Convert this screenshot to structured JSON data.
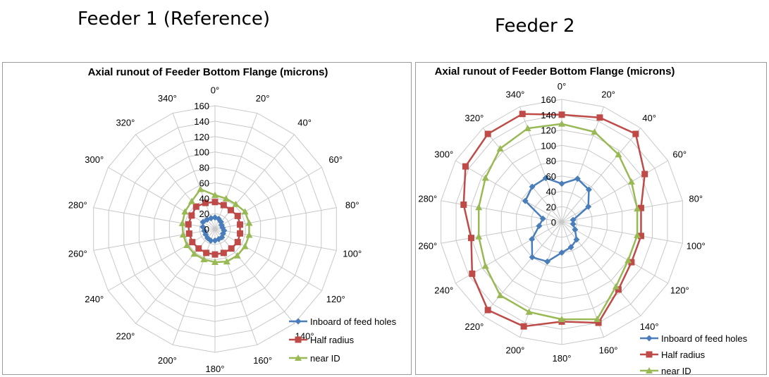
{
  "headings": {
    "left": "Feeder 1 (Reference)",
    "right": "Feeder 2"
  },
  "chart_data": [
    {
      "type": "radar",
      "title": "Axial runout of Feeder Bottom Flange (microns)",
      "categories": [
        "0°",
        "20°",
        "40°",
        "60°",
        "80°",
        "100°",
        "120°",
        "140°",
        "160°",
        "180°",
        "200°",
        "220°",
        "240°",
        "260°",
        "280°",
        "300°",
        "320°",
        "340°"
      ],
      "rlim": [
        0,
        160
      ],
      "rticks": [
        "0",
        "20",
        "40",
        "60",
        "80",
        "100",
        "120",
        "140",
        "160"
      ],
      "grid": true,
      "legend": "bottom-right",
      "series": [
        {
          "name": "Inboard of feed holes",
          "color": "#4a7ebb",
          "marker": "diamond",
          "values": [
            15,
            14,
            12,
            10,
            10,
            12,
            12,
            14,
            14,
            15,
            16,
            15,
            14,
            14,
            16,
            18,
            16,
            15
          ]
        },
        {
          "name": "Half radius",
          "color": "#be4b48",
          "marker": "square",
          "values": [
            35,
            33,
            32,
            34,
            33,
            33,
            34,
            33,
            33,
            33,
            33,
            33,
            34,
            34,
            35,
            35,
            38,
            36
          ]
        },
        {
          "name": "near ID",
          "color": "#98b954",
          "marker": "triangle",
          "values": [
            44,
            42,
            42,
            45,
            45,
            45,
            45,
            45,
            45,
            43,
            42,
            42,
            42,
            42,
            43,
            45,
            47,
            55
          ]
        }
      ]
    },
    {
      "type": "radar",
      "title": "Axial runout of Feeder Bottom Flange (microns)",
      "categories": [
        "0°",
        "20°",
        "40°",
        "60°",
        "80°",
        "100°",
        "120°",
        "140°",
        "160°",
        "180°",
        "200°",
        "220°",
        "240°",
        "260°",
        "280°",
        "300°",
        "320°",
        "340°"
      ],
      "rlim": [
        0,
        160
      ],
      "rticks": [
        "0",
        "20",
        "40",
        "60",
        "80",
        "100",
        "120",
        "140",
        "160"
      ],
      "grid": true,
      "legend": "bottom-right",
      "series": [
        {
          "name": "Inboard of feed holes",
          "color": "#4a7ebb",
          "marker": "diamond",
          "values": [
            50,
            60,
            55,
            40,
            15,
            15,
            20,
            30,
            35,
            40,
            55,
            60,
            45,
            30,
            25,
            55,
            60,
            61
          ]
        },
        {
          "name": "Half radius",
          "color": "#be4b48",
          "marker": "square",
          "values": [
            140,
            145,
            150,
            125,
            105,
            105,
            105,
            115,
            140,
            130,
            145,
            150,
            135,
            120,
            130,
            145,
            150,
            150
          ]
        },
        {
          "name": "near ID",
          "color": "#98b954",
          "marker": "triangle",
          "values": [
            128,
            125,
            115,
            105,
            100,
            100,
            100,
            110,
            135,
            127,
            125,
            125,
            115,
            110,
            110,
            115,
            125,
            130
          ]
        }
      ]
    }
  ]
}
